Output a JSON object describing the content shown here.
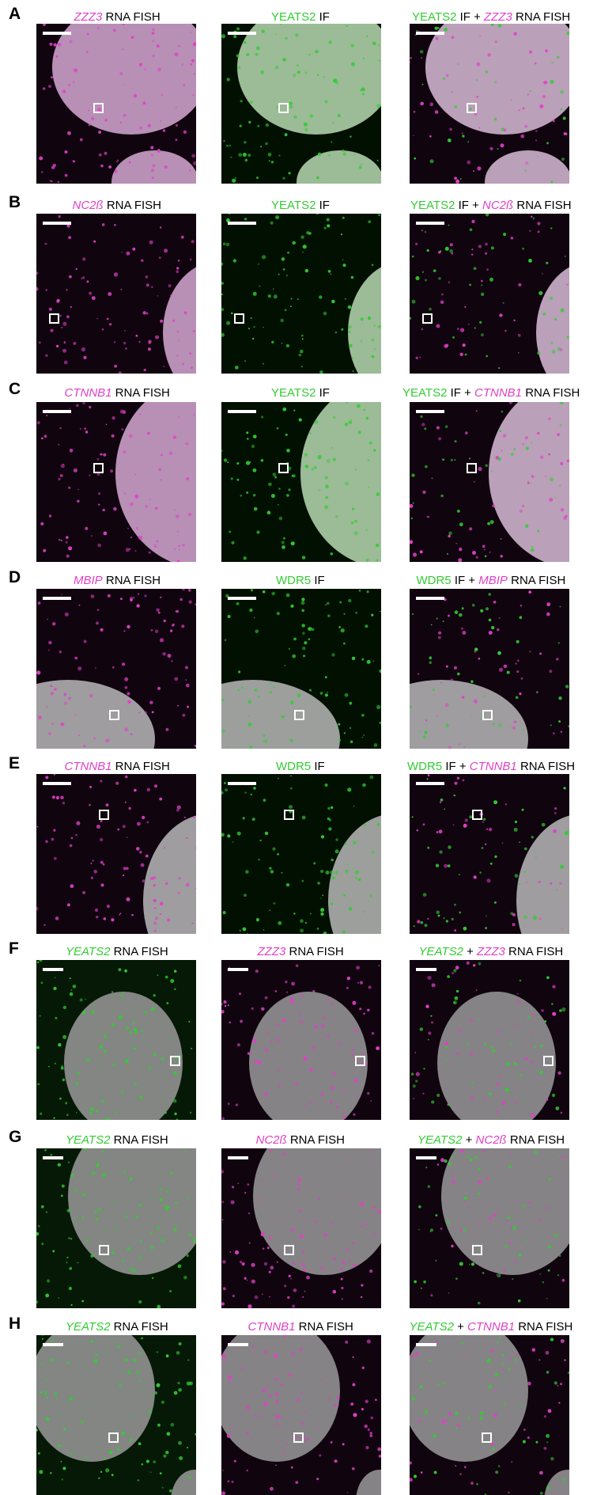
{
  "rows": [
    {
      "letter": "A",
      "labels": [
        [
          {
            "t": "ZZZ3",
            "c": "mag"
          },
          {
            "t": " RNA FISH",
            "c": "blk"
          }
        ],
        [
          {
            "t": "YEATS2",
            "c": "grn"
          },
          {
            "t": " IF",
            "c": "blk"
          }
        ],
        [
          {
            "t": "YEATS2",
            "c": "grn"
          },
          {
            "t": " IF + ",
            "c": "blk"
          },
          {
            "t": "ZZZ3",
            "c": "mag"
          },
          {
            "t": " RNA FISH",
            "c": "blk"
          }
        ]
      ]
    },
    {
      "letter": "B",
      "labels": [
        [
          {
            "t": "NC2ß",
            "c": "mag"
          },
          {
            "t": " RNA FISH",
            "c": "blk"
          }
        ],
        [
          {
            "t": "YEATS2",
            "c": "grn"
          },
          {
            "t": " IF",
            "c": "blk"
          }
        ],
        [
          {
            "t": "YEATS2",
            "c": "grn"
          },
          {
            "t": " IF + ",
            "c": "blk"
          },
          {
            "t": "NC2ß",
            "c": "mag"
          },
          {
            "t": " RNA FISH",
            "c": "blk"
          }
        ]
      ]
    },
    {
      "letter": "C",
      "labels": [
        [
          {
            "t": "CTNNB1",
            "c": "mag"
          },
          {
            "t": " RNA FISH",
            "c": "blk"
          }
        ],
        [
          {
            "t": "YEATS2",
            "c": "grn"
          },
          {
            "t": " IF",
            "c": "blk"
          }
        ],
        [
          {
            "t": "YEATS2",
            "c": "grn"
          },
          {
            "t": " IF + ",
            "c": "blk"
          },
          {
            "t": "CTNNB1",
            "c": "mag"
          },
          {
            "t": " RNA FISH",
            "c": "blk"
          }
        ]
      ]
    },
    {
      "letter": "D",
      "labels": [
        [
          {
            "t": "MBIP",
            "c": "mag"
          },
          {
            "t": " RNA FISH",
            "c": "blk"
          }
        ],
        [
          {
            "t": "WDR5",
            "c": "grn"
          },
          {
            "t": " IF",
            "c": "blk"
          }
        ],
        [
          {
            "t": "WDR5",
            "c": "grn"
          },
          {
            "t": " IF + ",
            "c": "blk"
          },
          {
            "t": "MBIP",
            "c": "mag"
          },
          {
            "t": " RNA FISH",
            "c": "blk"
          }
        ]
      ]
    },
    {
      "letter": "E",
      "labels": [
        [
          {
            "t": "CTNNB1",
            "c": "mag"
          },
          {
            "t": " RNA FISH",
            "c": "blk"
          }
        ],
        [
          {
            "t": "WDR5",
            "c": "grn"
          },
          {
            "t": " IF",
            "c": "blk"
          }
        ],
        [
          {
            "t": "WDR5",
            "c": "grn"
          },
          {
            "t": " IF + ",
            "c": "blk"
          },
          {
            "t": "CTNNB1",
            "c": "mag"
          },
          {
            "t": " RNA FISH",
            "c": "blk"
          }
        ]
      ]
    },
    {
      "letter": "F",
      "labels": [
        [
          {
            "t": "YEATS2",
            "c": "grn-it"
          },
          {
            "t": " RNA FISH",
            "c": "blk"
          }
        ],
        [
          {
            "t": "ZZZ3",
            "c": "mag"
          },
          {
            "t": " RNA FISH",
            "c": "blk"
          }
        ],
        [
          {
            "t": "YEATS2",
            "c": "grn-it"
          },
          {
            "t": " + ",
            "c": "blk"
          },
          {
            "t": "ZZZ3",
            "c": "mag"
          },
          {
            "t": " RNA FISH",
            "c": "blk"
          }
        ]
      ]
    },
    {
      "letter": "G",
      "labels": [
        [
          {
            "t": "YEATS2",
            "c": "grn-it"
          },
          {
            "t": " RNA FISH",
            "c": "blk"
          }
        ],
        [
          {
            "t": "NC2ß",
            "c": "mag"
          },
          {
            "t": " RNA FISH",
            "c": "blk"
          }
        ],
        [
          {
            "t": "YEATS2",
            "c": "grn-it"
          },
          {
            "t": " + ",
            "c": "blk"
          },
          {
            "t": "NC2ß",
            "c": "mag"
          },
          {
            "t": " RNA FISH",
            "c": "blk"
          }
        ]
      ]
    },
    {
      "letter": "H",
      "labels": [
        [
          {
            "t": "YEATS2",
            "c": "grn-it"
          },
          {
            "t": " RNA FISH",
            "c": "blk"
          }
        ],
        [
          {
            "t": "CTNNB1",
            "c": "mag"
          },
          {
            "t": " RNA FISH",
            "c": "blk"
          }
        ],
        [
          {
            "t": "YEATS2",
            "c": "grn-it"
          },
          {
            "t": " + ",
            "c": "blk"
          },
          {
            "t": "CTNNB1",
            "c": "mag"
          },
          {
            "t": " RNA FISH",
            "c": "blk"
          }
        ]
      ]
    }
  ],
  "colors": {
    "magenta": "#e040c8",
    "green": "#33cc33",
    "nucleus": "#bdbdbd"
  }
}
